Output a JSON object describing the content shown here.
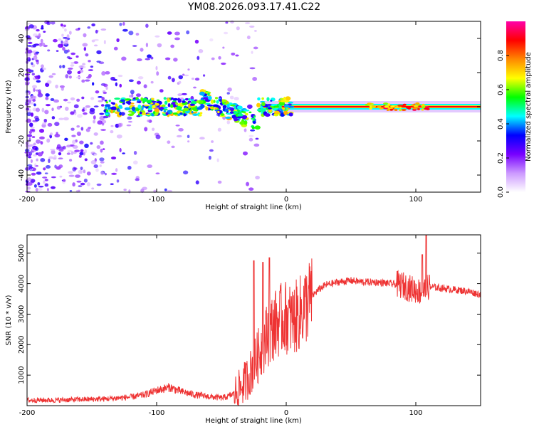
{
  "title": "YM08.2026.093.17.41.C22",
  "colors": {
    "line": "#ee3333",
    "axis": "#000000",
    "background": "#ffffff"
  },
  "chart_data": [
    {
      "type": "heatmap",
      "name": "spectrogram",
      "xlabel": "Height of straight line (km)",
      "ylabel": "Frequency (Hz)",
      "xlim": [
        -200,
        150
      ],
      "ylim": [
        -50,
        50
      ],
      "x_ticks": [
        -200,
        -100,
        0,
        100
      ],
      "y_ticks": [
        -40,
        -20,
        0,
        20,
        40
      ],
      "colorbar": {
        "label": "Normalized spectral amplitude",
        "range": [
          0,
          1
        ],
        "ticks": [
          "0.0",
          "0.2",
          "0.4",
          "0.6",
          "0.8"
        ],
        "colormap": [
          "#ffffff",
          "#cc99ff",
          "#7700ff",
          "#0000ff",
          "#00ffff",
          "#00ff00",
          "#ffff00",
          "#ff8800",
          "#ff0000",
          "#ff00aa"
        ]
      },
      "features": {
        "carrier_frequency_hz": 0,
        "carrier_start_km": -20,
        "noise_region_km": [
          -200,
          -20
        ]
      }
    },
    {
      "type": "line",
      "name": "snr",
      "xlabel": "Height of straight line (km)",
      "ylabel": "SNR (10 * v/v)",
      "xlim": [
        -200,
        150
      ],
      "ylim": [
        0,
        5600
      ],
      "x_ticks": [
        -200,
        -100,
        0,
        100
      ],
      "y_ticks": [
        1000,
        2000,
        3000,
        4000,
        5000
      ],
      "series": [
        {
          "name": "SNR",
          "x": [
            -200,
            -180,
            -160,
            -140,
            -120,
            -110,
            -100,
            -90,
            -80,
            -70,
            -60,
            -50,
            -45,
            -40,
            -35,
            -30,
            -25,
            -20,
            -15,
            -10,
            -5,
            0,
            5,
            10,
            15,
            20,
            25,
            30,
            40,
            50,
            60,
            70,
            80,
            90,
            95,
            100,
            105,
            110,
            120,
            130,
            140,
            150
          ],
          "y": [
            180,
            180,
            200,
            220,
            280,
            350,
            500,
            600,
            450,
            350,
            300,
            250,
            300,
            400,
            600,
            900,
            1300,
            1800,
            2300,
            2600,
            2800,
            2900,
            2800,
            3000,
            3300,
            3600,
            3800,
            3950,
            4050,
            4100,
            4050,
            4050,
            4000,
            3950,
            3850,
            3800,
            3700,
            3900,
            3850,
            3800,
            3750,
            3650
          ]
        }
      ],
      "spikes": [
        {
          "x": -25,
          "y": 4750
        },
        {
          "x": -18,
          "y": 4700
        },
        {
          "x": -13,
          "y": 4850
        },
        {
          "x": 105,
          "y": 4950
        },
        {
          "x": 108,
          "y": 5600
        }
      ]
    }
  ]
}
